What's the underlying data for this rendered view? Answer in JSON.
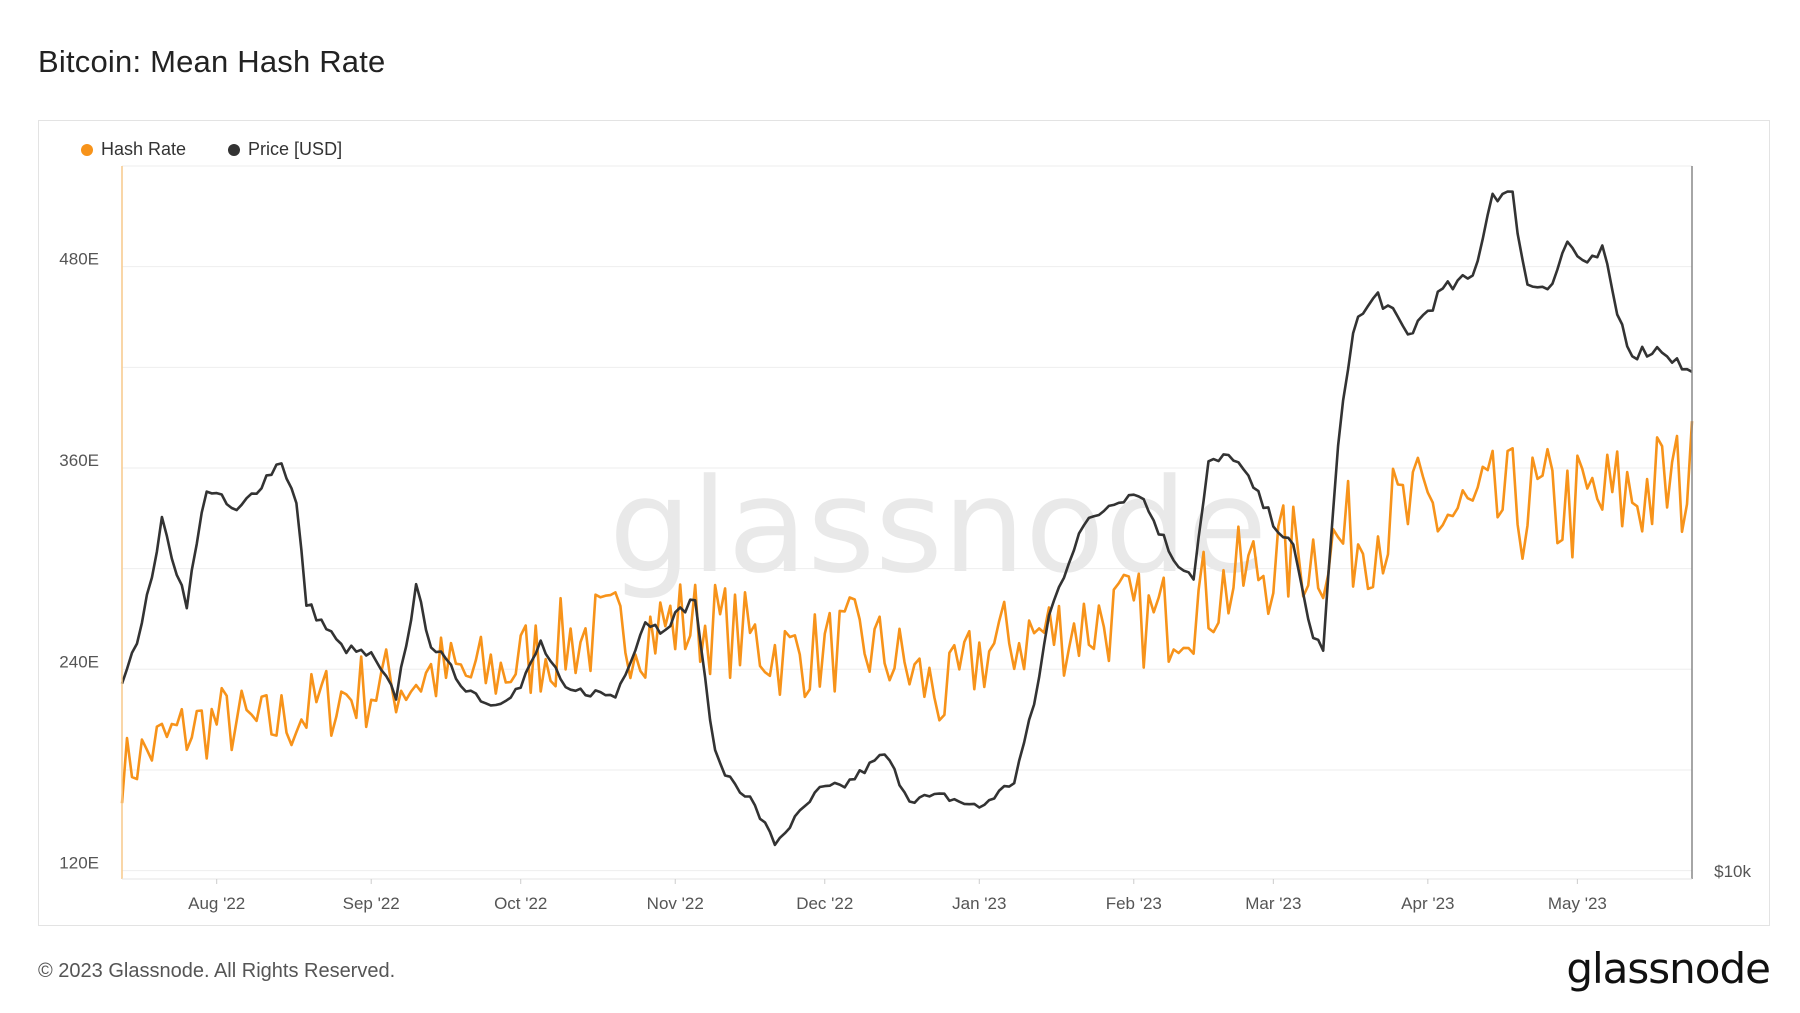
{
  "title": "Bitcoin: Mean Hash Rate",
  "footer": {
    "copyright": "© 2023 Glassnode. All Rights Reserved.",
    "logo": "glassnode"
  },
  "watermark": "glassnode",
  "chart_data": {
    "type": "line",
    "x_start": "2022-07-13",
    "x_end": "2023-05-24",
    "x_ticks": [
      {
        "label": "Aug '22",
        "date": "2022-08-01"
      },
      {
        "label": "Sep '22",
        "date": "2022-09-01"
      },
      {
        "label": "Oct '22",
        "date": "2022-10-01"
      },
      {
        "label": "Nov '22",
        "date": "2022-11-01"
      },
      {
        "label": "Dec '22",
        "date": "2022-12-01"
      },
      {
        "label": "Jan '23",
        "date": "2023-01-01"
      },
      {
        "label": "Feb '23",
        "date": "2023-02-01"
      },
      {
        "label": "Mar '23",
        "date": "2023-03-01"
      },
      {
        "label": "Apr '23",
        "date": "2023-04-01"
      },
      {
        "label": "May '23",
        "date": "2023-05-01"
      }
    ],
    "y_left": {
      "ticks": [
        120,
        240,
        360,
        480
      ],
      "tick_labels": [
        "120E",
        "240E",
        "360E",
        "480E"
      ],
      "range": [
        115,
        540
      ]
    },
    "y_right": {
      "tick_label": "$10k",
      "range": [
        15000,
        31000
      ]
    },
    "grid": true,
    "legend_position": "top-left",
    "series": [
      {
        "name": "Hash Rate",
        "axis": "left",
        "color": "#f7931a",
        "anchors": [
          [
            "2022-07-13",
            180
          ],
          [
            "2022-07-20",
            195
          ],
          [
            "2022-07-27",
            205
          ],
          [
            "2022-08-03",
            210
          ],
          [
            "2022-08-10",
            205
          ],
          [
            "2022-08-17",
            212
          ],
          [
            "2022-08-24",
            222
          ],
          [
            "2022-08-31",
            228
          ],
          [
            "2022-09-07",
            232
          ],
          [
            "2022-09-14",
            238
          ],
          [
            "2022-09-21",
            235
          ],
          [
            "2022-09-28",
            240
          ],
          [
            "2022-10-05",
            250
          ],
          [
            "2022-10-12",
            258
          ],
          [
            "2022-10-19",
            262
          ],
          [
            "2022-10-26",
            264
          ],
          [
            "2022-11-02",
            268
          ],
          [
            "2022-11-09",
            266
          ],
          [
            "2022-11-16",
            258
          ],
          [
            "2022-11-23",
            248
          ],
          [
            "2022-11-30",
            250
          ],
          [
            "2022-12-07",
            256
          ],
          [
            "2022-12-14",
            248
          ],
          [
            "2022-12-21",
            232
          ],
          [
            "2022-12-25",
            222
          ],
          [
            "2023-01-01",
            248
          ],
          [
            "2023-01-08",
            258
          ],
          [
            "2023-01-15",
            262
          ],
          [
            "2023-01-22",
            266
          ],
          [
            "2023-01-29",
            272
          ],
          [
            "2023-02-05",
            268
          ],
          [
            "2023-02-12",
            278
          ],
          [
            "2023-02-19",
            288
          ],
          [
            "2023-02-26",
            300
          ],
          [
            "2023-03-05",
            308
          ],
          [
            "2023-03-12",
            312
          ],
          [
            "2023-03-19",
            322
          ],
          [
            "2023-03-26",
            330
          ],
          [
            "2023-04-02",
            334
          ],
          [
            "2023-04-09",
            330
          ],
          [
            "2023-04-16",
            336
          ],
          [
            "2023-04-23",
            338
          ],
          [
            "2023-04-30",
            336
          ],
          [
            "2023-05-07",
            340
          ],
          [
            "2023-05-14",
            346
          ],
          [
            "2023-05-21",
            350
          ],
          [
            "2023-05-24",
            355
          ]
        ]
      },
      {
        "name": "Price [USD]",
        "axis": "right",
        "color": "#333333",
        "anchors": [
          [
            "2022-07-13",
            19500
          ],
          [
            "2022-07-17",
            20700
          ],
          [
            "2022-07-21",
            23000
          ],
          [
            "2022-07-26",
            21200
          ],
          [
            "2022-07-30",
            23800
          ],
          [
            "2022-08-05",
            23200
          ],
          [
            "2022-08-10",
            23900
          ],
          [
            "2022-08-14",
            24400
          ],
          [
            "2022-08-17",
            23400
          ],
          [
            "2022-08-19",
            21200
          ],
          [
            "2022-08-26",
            20200
          ],
          [
            "2022-09-01",
            20000
          ],
          [
            "2022-09-06",
            19100
          ],
          [
            "2022-09-10",
            21500
          ],
          [
            "2022-09-13",
            20300
          ],
          [
            "2022-09-19",
            19400
          ],
          [
            "2022-09-25",
            18900
          ],
          [
            "2022-10-01",
            19300
          ],
          [
            "2022-10-05",
            20300
          ],
          [
            "2022-10-10",
            19200
          ],
          [
            "2022-10-15",
            19200
          ],
          [
            "2022-10-20",
            19100
          ],
          [
            "2022-10-26",
            20800
          ],
          [
            "2022-10-29",
            20600
          ],
          [
            "2022-11-05",
            21300
          ],
          [
            "2022-11-08",
            18500
          ],
          [
            "2022-11-10",
            17500
          ],
          [
            "2022-11-16",
            16800
          ],
          [
            "2022-11-21",
            15800
          ],
          [
            "2022-11-30",
            17000
          ],
          [
            "2022-12-05",
            17100
          ],
          [
            "2022-12-13",
            17800
          ],
          [
            "2022-12-18",
            16800
          ],
          [
            "2022-12-25",
            16850
          ],
          [
            "2023-01-01",
            16600
          ],
          [
            "2023-01-08",
            17200
          ],
          [
            "2023-01-12",
            18900
          ],
          [
            "2023-01-15",
            20900
          ],
          [
            "2023-01-21",
            22800
          ],
          [
            "2023-01-28",
            23500
          ],
          [
            "2023-02-02",
            23700
          ],
          [
            "2023-02-09",
            22200
          ],
          [
            "2023-02-13",
            21800
          ],
          [
            "2023-02-16",
            24300
          ],
          [
            "2023-02-21",
            24500
          ],
          [
            "2023-02-28",
            23200
          ],
          [
            "2023-03-05",
            22400
          ],
          [
            "2023-03-09",
            20400
          ],
          [
            "2023-03-11",
            20200
          ],
          [
            "2023-03-14",
            24700
          ],
          [
            "2023-03-17",
            27400
          ],
          [
            "2023-03-22",
            28100
          ],
          [
            "2023-03-28",
            27200
          ],
          [
            "2023-04-04",
            28200
          ],
          [
            "2023-04-10",
            28500
          ],
          [
            "2023-04-14",
            30400
          ],
          [
            "2023-04-18",
            30300
          ],
          [
            "2023-04-21",
            28300
          ],
          [
            "2023-04-26",
            28400
          ],
          [
            "2023-04-29",
            29300
          ],
          [
            "2023-05-03",
            28700
          ],
          [
            "2023-05-06",
            29100
          ],
          [
            "2023-05-09",
            27700
          ],
          [
            "2023-05-12",
            26800
          ],
          [
            "2023-05-18",
            26900
          ],
          [
            "2023-05-24",
            26300
          ]
        ]
      }
    ]
  }
}
